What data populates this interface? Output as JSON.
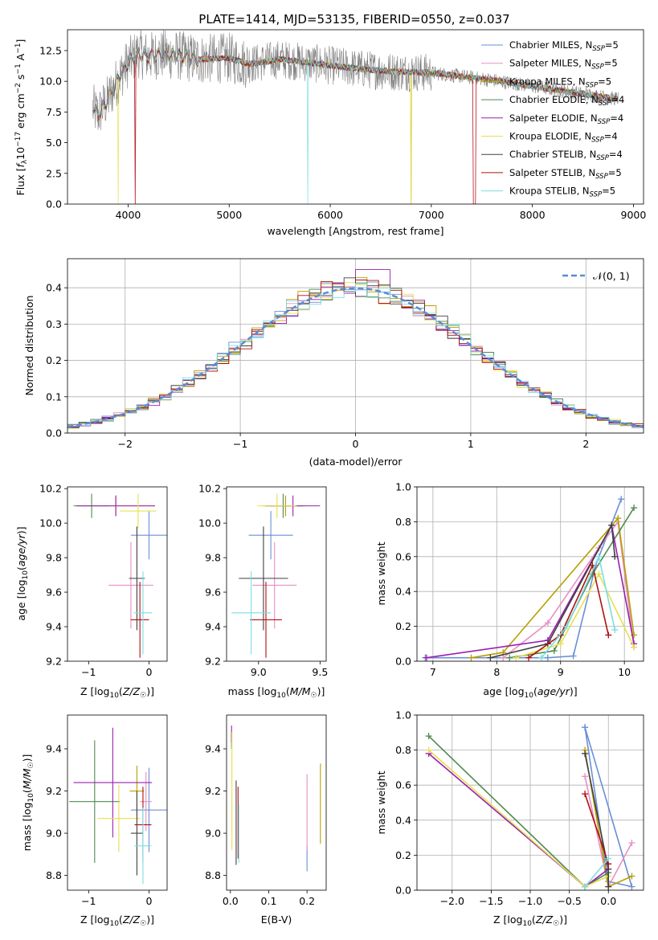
{
  "title": "PLATE=1414, MJD=53135, FIBERID=0550, z=0.037",
  "series_names": [
    "Chabrier MILES, N_SSP=5",
    "Salpeter MILES, N_SSP=5",
    "Kroupa MILES, N_SSP=5",
    "Chabrier ELODIE, N_SSP=4",
    "Salpeter ELODIE, N_SSP=4",
    "Kroupa ELODIE, N_SSP=4",
    "Chabrier STELIB, N_SSP=4",
    "Salpeter STELIB, N_SSP=5",
    "Kroupa STELIB, N_SSP=5"
  ],
  "series_colors": [
    "#6a8fd8",
    "#e88fc5",
    "#b8a000",
    "#4f8a50",
    "#9b1fb0",
    "#e6e050",
    "#404040",
    "#b01010",
    "#7ddde2"
  ],
  "chart_data": [
    {
      "id": "spectrum",
      "type": "line",
      "title": "PLATE=1414, MJD=53135, FIBERID=0550, z=0.037",
      "xlabel": "wavelength [Angstrom, rest frame]",
      "ylabel": "Flux [f_λ10^-17 erg cm^-2 s^-1 A^-1]",
      "xlim": [
        3400,
        9100
      ],
      "ylim": [
        0,
        14.2
      ],
      "xticks": [
        4000,
        5000,
        6000,
        7000,
        8000,
        9000
      ],
      "yticks": [
        0.0,
        2.5,
        5.0,
        7.5,
        10.0,
        12.5
      ],
      "data_wavelength": [
        3650,
        3700,
        3800,
        3900,
        4000,
        4100,
        4200,
        4300,
        4500,
        4700,
        5000,
        5200,
        5500,
        5800,
        6000,
        6300,
        6600,
        7000,
        7300,
        7600,
        8000,
        8400,
        8800
      ],
      "data_flux": [
        7.8,
        7.3,
        8.5,
        10.2,
        11.5,
        12.3,
        12.0,
        12.2,
        12.1,
        11.8,
        11.9,
        11.4,
        11.8,
        11.5,
        11.3,
        11.0,
        10.8,
        10.7,
        10.4,
        10.1,
        9.6,
        9.1,
        8.6
      ],
      "legend": "upper right"
    },
    {
      "id": "residuals",
      "type": "line",
      "xlabel": "(data-model)/error",
      "ylabel": "Normed distribution",
      "xlim": [
        -2.5,
        2.5
      ],
      "ylim": [
        0,
        0.48
      ],
      "xticks": [
        -2,
        -1,
        0,
        1,
        2
      ],
      "yticks": [
        0.0,
        0.1,
        0.2,
        0.3,
        0.4
      ],
      "gaussian_label": "𝒩(0, 1)",
      "legend": "upper right"
    },
    {
      "id": "age_vs_Z",
      "type": "scatter",
      "xlabel": "Z [log10(Z/Z☉)]",
      "ylabel": "age [log10(age/yr)]",
      "xlim": [
        -1.35,
        0.3
      ],
      "ylim": [
        9.2,
        10.21
      ],
      "xticks": [
        -1,
        0
      ],
      "yticks": [
        9.2,
        9.4,
        9.6,
        9.8,
        10.0,
        10.2
      ],
      "points": [
        {
          "x": 0.0,
          "xerr": 0.3,
          "y": 9.93,
          "yerr": 0.14
        },
        {
          "x": -0.3,
          "xerr": 0.37,
          "y": 9.64,
          "yerr": 0.25
        },
        {
          "x": -0.55,
          "xerr": 0.65,
          "y": 10.1,
          "yerr": 0.06
        },
        {
          "x": -0.95,
          "xerr": 0.3,
          "y": 10.1,
          "yerr": 0.07
        },
        {
          "x": -0.55,
          "xerr": 0.65,
          "y": 10.1,
          "yerr": 0.06
        },
        {
          "x": -0.18,
          "xerr": 0.3,
          "y": 10.07,
          "yerr": 0.1
        },
        {
          "x": -0.2,
          "xerr": 0.13,
          "y": 9.68,
          "yerr": 0.3
        },
        {
          "x": -0.15,
          "xerr": 0.15,
          "y": 9.44,
          "yerr": 0.22
        },
        {
          "x": -0.1,
          "xerr": 0.15,
          "y": 9.48,
          "yerr": 0.24
        }
      ]
    },
    {
      "id": "age_vs_mass",
      "type": "scatter",
      "xlabel": "mass [log10(M/M☉)]",
      "ylabel": "",
      "xlim": [
        8.74,
        9.55
      ],
      "ylim": [
        9.2,
        10.21
      ],
      "xticks": [
        9.0,
        9.5
      ],
      "yticks": [
        9.2,
        9.4,
        9.6,
        9.8,
        10.0,
        10.2
      ],
      "points": [
        {
          "x": 9.1,
          "xerr": 0.18,
          "y": 9.93,
          "yerr": 0.14
        },
        {
          "x": 9.13,
          "xerr": 0.18,
          "y": 9.64,
          "yerr": 0.25
        },
        {
          "x": 9.22,
          "xerr": 0.16,
          "y": 10.1,
          "yerr": 0.06
        },
        {
          "x": 9.2,
          "xerr": 0.16,
          "y": 10.1,
          "yerr": 0.07
        },
        {
          "x": 9.28,
          "xerr": 0.22,
          "y": 10.1,
          "yerr": 0.06
        },
        {
          "x": 9.15,
          "xerr": 0.16,
          "y": 10.1,
          "yerr": 0.07
        },
        {
          "x": 9.04,
          "xerr": 0.2,
          "y": 9.68,
          "yerr": 0.3
        },
        {
          "x": 9.06,
          "xerr": 0.13,
          "y": 9.44,
          "yerr": 0.22
        },
        {
          "x": 8.94,
          "xerr": 0.16,
          "y": 9.48,
          "yerr": 0.24
        }
      ]
    },
    {
      "id": "mw_vs_age",
      "type": "line",
      "xlabel": "age [log10(age/yr)]",
      "ylabel": "mass weight",
      "xlim": [
        6.75,
        10.3
      ],
      "ylim": [
        0,
        1.0
      ],
      "xticks": [
        7,
        8,
        9,
        10
      ],
      "yticks": [
        0.0,
        0.2,
        0.4,
        0.6,
        0.8,
        1.0
      ],
      "series": [
        {
          "x": [
            6.88,
            8.8,
            9.2,
            9.55,
            9.95
          ],
          "y": [
            0.02,
            0.02,
            0.03,
            0.55,
            0.93
          ]
        },
        {
          "x": [
            8.1,
            8.8,
            9.6,
            9.9,
            10.15
          ],
          "y": [
            0.02,
            0.22,
            0.65,
            0.8,
            0.08
          ]
        },
        {
          "x": [
            7.6,
            8.1,
            9.9,
            10.15
          ],
          "y": [
            0.02,
            0.05,
            0.82,
            0.15
          ]
        },
        {
          "x": [
            8.2,
            8.9,
            9.5,
            10.15
          ],
          "y": [
            0.02,
            0.06,
            0.5,
            0.88
          ]
        },
        {
          "x": [
            6.9,
            8.8,
            9.8,
            10.15
          ],
          "y": [
            0.02,
            0.12,
            0.78,
            0.1
          ]
        },
        {
          "x": [
            8.3,
            9.0,
            9.6,
            10.15
          ],
          "y": [
            0.02,
            0.1,
            0.5,
            0.08
          ]
        },
        {
          "x": [
            7.9,
            8.8,
            9.8,
            9.85
          ],
          "y": [
            0.02,
            0.1,
            0.78,
            0.6
          ]
        },
        {
          "x": [
            8.5,
            9.0,
            9.5,
            9.75
          ],
          "y": [
            0.02,
            0.15,
            0.55,
            0.15
          ]
        },
        {
          "x": [
            8.7,
            9.1,
            9.6,
            9.85
          ],
          "y": [
            0.02,
            0.2,
            0.6,
            0.18
          ]
        }
      ]
    },
    {
      "id": "mass_vs_Z",
      "type": "scatter",
      "xlabel": "Z [log10(Z/Z☉)]",
      "ylabel": "mass [log10(M/M☉)]",
      "xlim": [
        -1.35,
        0.3
      ],
      "ylim": [
        8.73,
        9.56
      ],
      "xticks": [
        -1,
        0
      ],
      "yticks": [
        8.8,
        9.0,
        9.2,
        9.4
      ],
      "points": [
        {
          "x": 0.0,
          "xerr": 0.3,
          "y": 9.11,
          "yerr": 0.2
        },
        {
          "x": -0.05,
          "xerr": 0.1,
          "y": 9.15,
          "yerr": 0.14
        },
        {
          "x": -0.2,
          "xerr": 0.12,
          "y": 9.2,
          "yerr": 0.12
        },
        {
          "x": -0.9,
          "xerr": 0.42,
          "y": 9.15,
          "yerr": 0.29
        },
        {
          "x": -0.6,
          "xerr": 0.65,
          "y": 9.24,
          "yerr": 0.26
        },
        {
          "x": -0.5,
          "xerr": 0.35,
          "y": 9.07,
          "yerr": 0.16
        },
        {
          "x": -0.2,
          "xerr": 0.1,
          "y": 9.0,
          "yerr": 0.2
        },
        {
          "x": -0.1,
          "xerr": 0.14,
          "y": 9.04,
          "yerr": 0.18
        },
        {
          "x": -0.1,
          "xerr": 0.14,
          "y": 8.94,
          "yerr": 0.18
        }
      ]
    },
    {
      "id": "mass_vs_ebv",
      "type": "scatter",
      "xlabel": "E(B-V)",
      "ylabel": "",
      "xlim": [
        -0.01,
        0.25
      ],
      "ylim": [
        8.73,
        9.56
      ],
      "xticks": [
        0.0,
        0.1,
        0.2
      ],
      "yticks": [
        8.8,
        9.0,
        9.2,
        9.4
      ],
      "points": [
        {
          "x": 0.2,
          "xerr": 0,
          "y": 8.88,
          "yerr": 0.06
        },
        {
          "x": 0.2,
          "xerr": 0,
          "y": 9.1,
          "yerr": 0.18
        },
        {
          "x": 0.235,
          "xerr": 0,
          "y": 9.14,
          "yerr": 0.19
        },
        {
          "x": 0.003,
          "xerr": 0,
          "y": 9.44,
          "yerr": 0.04
        },
        {
          "x": 0.003,
          "xerr": 0,
          "y": 9.47,
          "yerr": 0.04
        },
        {
          "x": 0.004,
          "xerr": 0,
          "y": 9.2,
          "yerr": 0.28
        },
        {
          "x": 0.015,
          "xerr": 0,
          "y": 9.05,
          "yerr": 0.2
        },
        {
          "x": 0.02,
          "xerr": 0,
          "y": 9.05,
          "yerr": 0.17
        },
        {
          "x": 0.022,
          "xerr": 0,
          "y": 9.0,
          "yerr": 0.14
        }
      ]
    },
    {
      "id": "mw_vs_Z",
      "type": "line",
      "xlabel": "Z [log10(Z/Z☉)]",
      "ylabel": "mass weight",
      "xlim": [
        -2.45,
        0.45
      ],
      "ylim": [
        0,
        1.0
      ],
      "xticks": [
        -2.0,
        -1.5,
        -1.0,
        -0.5,
        0.0
      ],
      "yticks": [
        0.0,
        0.2,
        0.4,
        0.6,
        0.8,
        1.0
      ],
      "series": [
        {
          "x": [
            -0.3,
            0.0,
            0.3,
            -0.3
          ],
          "y": [
            0.93,
            0.05,
            0.02,
            0.93
          ]
        },
        {
          "x": [
            -0.3,
            0.0,
            0.3
          ],
          "y": [
            0.65,
            0.02,
            0.27
          ]
        },
        {
          "x": [
            -0.3,
            0.0,
            0.3
          ],
          "y": [
            0.8,
            0.02,
            0.08
          ]
        },
        {
          "x": [
            -2.3,
            -0.3,
            0.0
          ],
          "y": [
            0.88,
            0.02,
            0.1
          ]
        },
        {
          "x": [
            -2.3,
            -0.3,
            0.0
          ],
          "y": [
            0.78,
            0.02,
            0.12
          ]
        },
        {
          "x": [
            -2.3,
            -0.3,
            0.0
          ],
          "y": [
            0.8,
            0.02,
            0.08
          ]
        },
        {
          "x": [
            -0.3,
            0.0,
            0.0
          ],
          "y": [
            0.78,
            0.12,
            0.02
          ]
        },
        {
          "x": [
            -0.3,
            0.0
          ],
          "y": [
            0.55,
            0.15
          ]
        },
        {
          "x": [
            -0.3,
            0.0
          ],
          "y": [
            0.02,
            0.18
          ]
        }
      ]
    }
  ]
}
